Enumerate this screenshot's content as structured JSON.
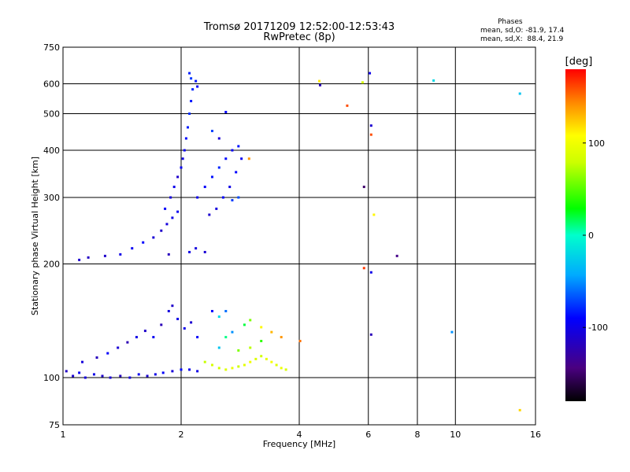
{
  "title_line1": "Tromsø 20171209 12:52:00-12:53:43",
  "title_line2": "RwPretec (8p)",
  "phases": {
    "heading": "Phases",
    "line_o": "mean, sd,O: -81.9, 17.4",
    "line_x": "mean, sd,X:  88.4, 21.9"
  },
  "chart_data": {
    "type": "scatter",
    "title": "Tromsø 20171209 12:52:00-12:53:43",
    "subtitle": "RwPretec (8p)",
    "xlabel": "Frequency [MHz]",
    "ylabel": "Stationary phase Virtual Height [km]",
    "x_scale": "log",
    "y_scale": "log",
    "xlim": [
      1,
      16
    ],
    "ylim": [
      75,
      750
    ],
    "x_ticks": [
      1,
      2,
      4,
      6,
      8,
      10,
      16
    ],
    "x_tick_labels": [
      "1",
      "2",
      "4",
      "6",
      "8",
      "10",
      "16"
    ],
    "y_ticks": [
      75,
      100,
      200,
      300,
      400,
      500,
      600,
      750
    ],
    "y_tick_labels": [
      "75",
      "100",
      "200",
      "300",
      "400",
      "500",
      "600",
      "750"
    ],
    "grid": true,
    "colorbar": {
      "label": "[deg]",
      "range": [
        -180,
        180
      ],
      "ticks": [
        100,
        0,
        -100
      ],
      "tick_labels": [
        "100",
        "0",
        "-100"
      ]
    },
    "series": [
      {
        "points": [
          [
            1.02,
            104,
            -115
          ],
          [
            1.06,
            101,
            -110
          ],
          [
            1.1,
            103,
            -95
          ],
          [
            1.14,
            100,
            -105
          ],
          [
            1.2,
            102,
            -100
          ],
          [
            1.26,
            101,
            -112
          ],
          [
            1.32,
            100,
            -108
          ],
          [
            1.4,
            101,
            -118
          ],
          [
            1.48,
            100,
            -104
          ],
          [
            1.56,
            102,
            -96
          ],
          [
            1.64,
            101,
            -110
          ],
          [
            1.72,
            102,
            -100
          ],
          [
            1.8,
            103,
            -92
          ],
          [
            1.9,
            104,
            -106
          ],
          [
            2.0,
            105,
            -88
          ],
          [
            2.1,
            105,
            -98
          ],
          [
            2.2,
            104,
            -100
          ],
          [
            1.12,
            110,
            -105
          ],
          [
            1.22,
            113,
            -118
          ],
          [
            1.3,
            116,
            -92
          ],
          [
            1.38,
            120,
            -108
          ],
          [
            1.46,
            124,
            -122
          ],
          [
            1.54,
            128,
            -100
          ],
          [
            1.62,
            133,
            -112
          ],
          [
            1.7,
            128,
            -95
          ],
          [
            1.78,
            138,
            -120
          ],
          [
            1.86,
            150,
            -104
          ],
          [
            1.9,
            155,
            -112
          ],
          [
            1.96,
            143,
            -100
          ],
          [
            2.04,
            135,
            -98
          ],
          [
            2.12,
            140,
            -110
          ],
          [
            2.2,
            128,
            -92
          ],
          [
            1.1,
            205,
            -110
          ],
          [
            1.16,
            208,
            -115
          ],
          [
            1.28,
            210,
            -112
          ],
          [
            1.4,
            212,
            -100
          ],
          [
            1.5,
            220,
            -95
          ],
          [
            1.6,
            228,
            -90
          ],
          [
            1.7,
            235,
            -108
          ],
          [
            1.78,
            245,
            -112
          ],
          [
            1.84,
            255,
            -105
          ],
          [
            1.9,
            265,
            -100
          ],
          [
            1.96,
            275,
            -96
          ],
          [
            1.86,
            212,
            -118
          ],
          [
            1.82,
            280,
            -92
          ],
          [
            1.88,
            300,
            -105
          ],
          [
            1.92,
            320,
            -98
          ],
          [
            1.96,
            340,
            -112
          ],
          [
            2.0,
            360,
            -94
          ],
          [
            2.02,
            380,
            -102
          ],
          [
            2.04,
            400,
            -96
          ],
          [
            2.06,
            430,
            -88
          ],
          [
            2.08,
            460,
            -82
          ],
          [
            2.1,
            500,
            -78
          ],
          [
            2.12,
            540,
            -84
          ],
          [
            2.14,
            580,
            -80
          ],
          [
            2.12,
            620,
            -75
          ],
          [
            2.1,
            640,
            -82
          ],
          [
            2.18,
            610,
            -86
          ],
          [
            2.2,
            590,
            -95
          ],
          [
            2.1,
            215,
            -100
          ],
          [
            2.18,
            220,
            -104
          ],
          [
            2.3,
            215,
            -108
          ],
          [
            2.2,
            300,
            -98
          ],
          [
            2.3,
            320,
            -92
          ],
          [
            2.4,
            340,
            -86
          ],
          [
            2.5,
            360,
            -80
          ],
          [
            2.6,
            380,
            -88
          ],
          [
            2.7,
            400,
            -94
          ],
          [
            2.8,
            410,
            -84
          ],
          [
            2.85,
            380,
            -96
          ],
          [
            2.76,
            350,
            -90
          ],
          [
            2.66,
            320,
            -100
          ],
          [
            2.56,
            300,
            -92
          ],
          [
            2.46,
            280,
            -104
          ],
          [
            2.36,
            270,
            -110
          ],
          [
            2.5,
            430,
            -108
          ],
          [
            2.4,
            450,
            -72
          ],
          [
            2.6,
            505,
            -90
          ],
          [
            2.8,
            300,
            -70
          ],
          [
            2.7,
            295,
            -74
          ],
          [
            2.3,
            110,
            78
          ],
          [
            2.4,
            108,
            85
          ],
          [
            2.5,
            106,
            82
          ],
          [
            2.6,
            105,
            90
          ],
          [
            2.7,
            106,
            96
          ],
          [
            2.8,
            107,
            80
          ],
          [
            2.9,
            108,
            92
          ],
          [
            3.0,
            110,
            100
          ],
          [
            3.1,
            112,
            88
          ],
          [
            3.2,
            114,
            82
          ],
          [
            3.3,
            112,
            95
          ],
          [
            3.4,
            110,
            104
          ],
          [
            3.5,
            108,
            90
          ],
          [
            3.6,
            106,
            98
          ],
          [
            3.7,
            105,
            86
          ],
          [
            2.5,
            120,
            -30
          ],
          [
            2.6,
            128,
            10
          ],
          [
            2.7,
            132,
            -50
          ],
          [
            2.9,
            138,
            20
          ],
          [
            3.0,
            142,
            60
          ],
          [
            3.2,
            136,
            110
          ],
          [
            3.4,
            132,
            130
          ],
          [
            3.6,
            128,
            140
          ],
          [
            3.2,
            125,
            40
          ],
          [
            3.0,
            120,
            75
          ],
          [
            2.8,
            118,
            60
          ],
          [
            2.6,
            150,
            -60
          ],
          [
            2.4,
            150,
            -90
          ],
          [
            2.5,
            145,
            -20
          ],
          [
            4.02,
            125,
            150
          ],
          [
            4.5,
            610,
            115
          ],
          [
            4.52,
            595,
            -120
          ],
          [
            5.3,
            525,
            160
          ],
          [
            5.8,
            605,
            85
          ],
          [
            6.05,
            640,
            -100
          ],
          [
            6.1,
            465,
            -110
          ],
          [
            6.1,
            440,
            160
          ],
          [
            6.2,
            270,
            110
          ],
          [
            5.85,
            320,
            -150
          ],
          [
            5.85,
            195,
            165
          ],
          [
            6.1,
            190,
            -100
          ],
          [
            6.1,
            130,
            -120
          ],
          [
            7.1,
            210,
            -140
          ],
          [
            8.8,
            612,
            -20
          ],
          [
            9.8,
            132,
            -50
          ],
          [
            14.6,
            565,
            -30
          ],
          [
            14.6,
            82,
            120
          ],
          [
            2.98,
            380,
            140
          ]
        ]
      }
    ]
  }
}
